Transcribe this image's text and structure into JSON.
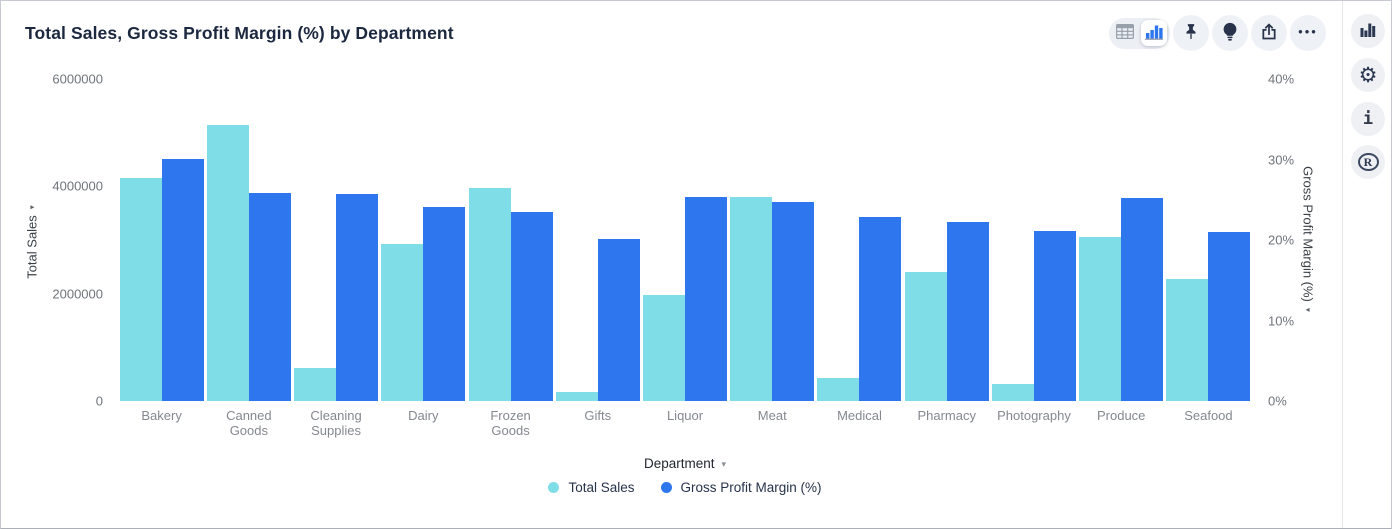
{
  "header": {
    "title": "Total Sales, Gross Profit Margin (%) by Department"
  },
  "toolbar": {
    "view_toggle": [
      {
        "name": "table-view",
        "icon": "table-grid-icon",
        "selected": false
      },
      {
        "name": "chart-view",
        "icon": "bar-chart-icon",
        "selected": true
      }
    ],
    "buttons": [
      {
        "name": "pin",
        "icon": "pin-icon"
      },
      {
        "name": "explore",
        "icon": "lightbulb-icon"
      },
      {
        "name": "export",
        "icon": "share-icon"
      },
      {
        "name": "more",
        "icon": "ellipsis-icon",
        "glyph": "•••"
      }
    ]
  },
  "side_rail": {
    "buttons": [
      {
        "name": "chart",
        "icon": "bar-chart-icon"
      },
      {
        "name": "settings",
        "icon": "gear-icon",
        "glyph": "⚙"
      },
      {
        "name": "info",
        "icon": "info-icon",
        "glyph": "i"
      },
      {
        "name": "r-logo",
        "icon": "r-logo-icon",
        "glyph": "R"
      }
    ]
  },
  "chart_data": {
    "type": "bar",
    "title": "Total Sales, Gross Profit Margin (%) by Department",
    "categories": [
      "Bakery",
      "Canned Goods",
      "Cleaning Supplies",
      "Dairy",
      "Frozen Goods",
      "Gifts",
      "Liquor",
      "Meat",
      "Medical",
      "Pharmacy",
      "Photography",
      "Produce",
      "Seafood"
    ],
    "series": [
      {
        "name": "Total Sales",
        "axis": "left",
        "color": "#7FDDE8",
        "values": [
          4150000,
          5150000,
          610000,
          2930000,
          3970000,
          170000,
          1980000,
          3800000,
          430000,
          2400000,
          320000,
          3060000,
          2270000
        ]
      },
      {
        "name": "Gross Profit Margin (%)",
        "axis": "right",
        "color": "#2E76EE",
        "values": [
          30.1,
          25.8,
          25.7,
          24.1,
          23.5,
          20.1,
          25.3,
          24.7,
          22.9,
          22.2,
          21.1,
          25.2,
          21.0
        ]
      }
    ],
    "left_axis": {
      "label": "Total Sales",
      "sort_glyph": "▾",
      "ticks": [
        "0",
        "2000000",
        "4000000",
        "6000000"
      ],
      "range": [
        0,
        6000000
      ]
    },
    "right_axis": {
      "label": "Gross Profit Margin (%)",
      "sort_glyph": "▾",
      "ticks": [
        "0%",
        "10%",
        "20%",
        "30%",
        "40%"
      ],
      "range": [
        0,
        40
      ]
    },
    "x_axis": {
      "label": "Department",
      "dropdown_glyph": "▾"
    },
    "legend": [
      {
        "label": "Total Sales",
        "color": "#7FDDE8"
      },
      {
        "label": "Gross Profit Margin (%)",
        "color": "#2E76EE"
      }
    ],
    "grid": false,
    "legend_position": "bottom"
  },
  "colors": {
    "series_cyan": "#7FDDE8",
    "series_blue": "#2E76EE",
    "icon_navy": "#28324A",
    "title_navy": "#1C2840"
  }
}
